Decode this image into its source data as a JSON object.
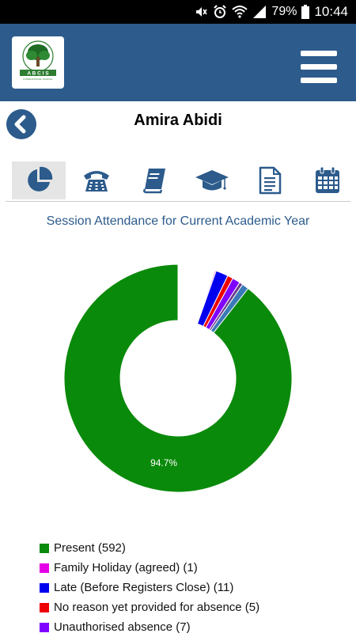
{
  "status_bar": {
    "battery": "79%",
    "time": "10:44"
  },
  "header": {
    "logo_text": "A B C I S",
    "logo_subtext": "INTERNATIONAL SCHOOL"
  },
  "student": {
    "name": "Amira Abidi"
  },
  "tabs": [
    {
      "icon": "pie-chart-icon",
      "active": true
    },
    {
      "icon": "phone-icon",
      "active": false
    },
    {
      "icon": "book-icon",
      "active": false
    },
    {
      "icon": "graduation-cap-icon",
      "active": false
    },
    {
      "icon": "document-icon",
      "active": false
    },
    {
      "icon": "calendar-icon",
      "active": false
    }
  ],
  "colors": {
    "brand": "#2c5b8c",
    "icon": "#2c5b8c"
  },
  "chart_data": {
    "type": "pie",
    "title": "Session Attendance for Current Academic Year",
    "series": [
      {
        "name": "Present",
        "count": 592,
        "label": "Present (592)",
        "color": "#0a8a0a"
      },
      {
        "name": "Family Holiday (agreed)",
        "count": 1,
        "label": "Family Holiday (agreed) (1)",
        "color": "#e600e6"
      },
      {
        "name": "Late (Before Registers Close)",
        "count": 11,
        "label": "Late (Before Registers Close) (11)",
        "color": "#0000ee"
      },
      {
        "name": "No reason yet provided for absence",
        "count": 5,
        "label": "No reason yet provided for absence (5)",
        "color": "#ee0000"
      },
      {
        "name": "Unauthorised absence",
        "count": 7,
        "label": "Unauthorised absence (7)",
        "color": "#7f00ff"
      },
      {
        "name": "",
        "count": 3,
        "label": "",
        "color": "#6a3a8a"
      },
      {
        "name": "",
        "count": 6,
        "label": "",
        "color": "#3a7ab8"
      }
    ],
    "slice_label": "94.7%"
  }
}
